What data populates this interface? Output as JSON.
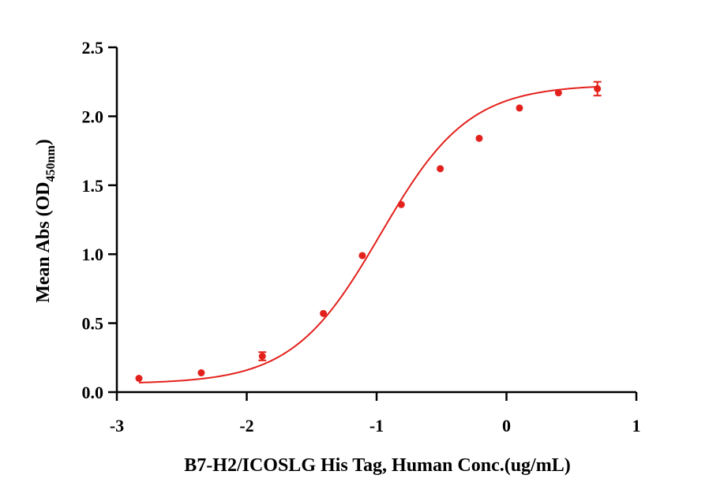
{
  "chart_data": {
    "type": "scatter",
    "xlabel": "B7-H2/ICOSLG His Tag, Human Conc.(ug/mL)",
    "ylabel": {
      "main": "Mean Abs (OD",
      "subscript": "450nm",
      "close": ")"
    },
    "xlim": [
      -3,
      1
    ],
    "ylim": [
      0,
      2.5
    ],
    "xticks": [
      "-3",
      "-2",
      "-1",
      "0",
      "1"
    ],
    "yticks": [
      "0.0",
      "0.5",
      "1.0",
      "1.5",
      "2.0",
      "2.5"
    ],
    "grid": false,
    "colors": {
      "series": "#e3211c",
      "axis": "#000000"
    },
    "series": [
      {
        "points": [
          {
            "x": -2.83,
            "y": 0.1,
            "err": 0.0
          },
          {
            "x": -2.35,
            "y": 0.14,
            "err": 0.0
          },
          {
            "x": -1.88,
            "y": 0.26,
            "err": 0.03
          },
          {
            "x": -1.41,
            "y": 0.57,
            "err": 0.0
          },
          {
            "x": -1.11,
            "y": 0.99,
            "err": 0.0
          },
          {
            "x": -0.81,
            "y": 1.36,
            "err": 0.0
          },
          {
            "x": -0.51,
            "y": 1.62,
            "err": 0.0
          },
          {
            "x": -0.21,
            "y": 1.84,
            "err": 0.0
          },
          {
            "x": 0.1,
            "y": 2.06,
            "err": 0.0
          },
          {
            "x": 0.4,
            "y": 2.17,
            "err": 0.0
          },
          {
            "x": 0.7,
            "y": 2.2,
            "err": 0.05
          }
        ],
        "fit": {
          "type": "4PL",
          "bottom": 0.06,
          "top": 2.23,
          "logEC50": -0.97,
          "hill": 1.28
        }
      }
    ]
  }
}
